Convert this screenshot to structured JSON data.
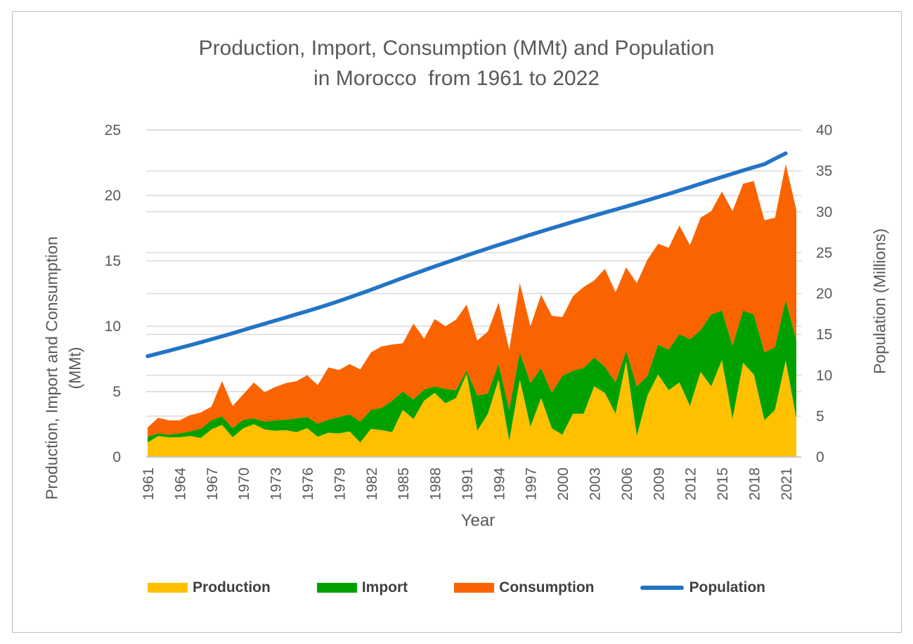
{
  "figure": {
    "title_line1": "Production, Import, Consumption (MMt) and Population",
    "title_line2": "in Morocco  from 1961 to 2022"
  },
  "axes": {
    "left_title_line1": "Production, Import and Consumption",
    "left_title_line2": "(MMt)",
    "right_title": "Population (Millions)",
    "x_title": "Year",
    "left_ticks": [
      0,
      5,
      10,
      15,
      20,
      25
    ],
    "right_ticks": [
      0,
      5,
      10,
      15,
      20,
      25,
      30,
      35,
      40
    ],
    "left_range": [
      0,
      25
    ],
    "right_range": [
      0,
      40
    ],
    "x_tick_years": [
      1961,
      1964,
      1967,
      1970,
      1973,
      1976,
      1979,
      1982,
      1985,
      1988,
      1991,
      1994,
      1997,
      2000,
      2003,
      2006,
      2009,
      2012,
      2015,
      2018,
      2021
    ]
  },
  "legend": {
    "items": [
      {
        "label": "Production",
        "color": "#FFC000",
        "type": "area"
      },
      {
        "label": "Import",
        "color": "#00A000",
        "type": "area"
      },
      {
        "label": "Consumption",
        "color": "#FA6400",
        "type": "area"
      },
      {
        "label": "Population",
        "color": "#2374C4",
        "type": "line"
      }
    ]
  },
  "colors": {
    "production": "#FFC000",
    "import": "#00A000",
    "consumption": "#FA6400",
    "population": "#2374C4",
    "gridline": "#D9D9D9",
    "axis_line": "#C8C8C8",
    "text": "#595959",
    "legend_text": "#404040"
  },
  "chart_data": {
    "type": "combo: stacked-area (primary axis, MMt) + line (secondary axis, millions)",
    "title": "Production, Import, Consumption (MMt) and Population in Morocco  from 1961 to 2022",
    "xlabel": "Year",
    "ylabel_left": "Production, Import and Consumption (MMt)",
    "ylabel_right": "Population (Millions)",
    "ylim_left": [
      0,
      25
    ],
    "ylim_right": [
      0,
      40
    ],
    "grid": true,
    "legend_position": "bottom",
    "categories": [
      1961,
      1962,
      1963,
      1964,
      1965,
      1966,
      1967,
      1968,
      1969,
      1970,
      1971,
      1972,
      1973,
      1974,
      1975,
      1976,
      1977,
      1978,
      1979,
      1980,
      1981,
      1982,
      1983,
      1984,
      1985,
      1986,
      1987,
      1988,
      1989,
      1990,
      1991,
      1992,
      1993,
      1994,
      1995,
      1996,
      1997,
      1998,
      1999,
      2000,
      2001,
      2002,
      2003,
      2004,
      2005,
      2006,
      2007,
      2008,
      2009,
      2010,
      2011,
      2012,
      2013,
      2014,
      2015,
      2016,
      2017,
      2018,
      2019,
      2020,
      2021,
      2022
    ],
    "series": [
      {
        "name": "Production",
        "axis": "left",
        "stack": true,
        "values": [
          1.1,
          1.6,
          1.5,
          1.5,
          1.6,
          1.45,
          2.1,
          2.45,
          1.5,
          2.2,
          2.5,
          2.1,
          2.0,
          2.05,
          1.9,
          2.2,
          1.55,
          1.85,
          1.8,
          1.95,
          1.1,
          2.15,
          2.05,
          1.9,
          3.6,
          2.9,
          4.3,
          4.9,
          4.1,
          4.5,
          6.35,
          2.0,
          3.3,
          5.9,
          1.2,
          5.9,
          2.3,
          4.5,
          2.2,
          1.7,
          3.3,
          3.3,
          5.4,
          4.9,
          3.3,
          7.3,
          1.6,
          4.7,
          6.3,
          5.1,
          5.7,
          3.9,
          6.5,
          5.4,
          7.4,
          2.9,
          7.2,
          6.3,
          2.8,
          3.6,
          7.35,
          2.95
        ]
      },
      {
        "name": "Import",
        "axis": "left",
        "stack": true,
        "values": [
          0.45,
          0.2,
          0.2,
          0.3,
          0.35,
          0.7,
          0.7,
          0.65,
          0.7,
          0.65,
          0.45,
          0.6,
          0.8,
          0.8,
          1.05,
          0.85,
          1.0,
          1.0,
          1.25,
          1.3,
          1.6,
          1.45,
          1.7,
          2.4,
          1.4,
          1.5,
          0.85,
          0.5,
          1.1,
          0.6,
          0.25,
          2.7,
          1.55,
          1.2,
          2.4,
          2.1,
          3.35,
          2.3,
          2.7,
          4.5,
          3.3,
          3.5,
          2.2,
          2.0,
          2.4,
          0.8,
          3.8,
          1.5,
          2.3,
          3.1,
          3.7,
          5.1,
          3.2,
          5.5,
          3.8,
          5.6,
          4.0,
          4.6,
          5.2,
          4.8,
          4.65,
          5.95
        ]
      },
      {
        "name": "Consumption",
        "axis": "left",
        "stack": true,
        "values": [
          0.7,
          1.2,
          1.1,
          1.0,
          1.25,
          1.25,
          1.05,
          2.7,
          1.7,
          1.95,
          2.75,
          2.25,
          2.55,
          2.8,
          2.85,
          3.2,
          2.95,
          4.0,
          3.6,
          3.85,
          4.0,
          4.4,
          4.7,
          4.3,
          3.7,
          5.8,
          3.9,
          5.15,
          4.8,
          5.4,
          5.05,
          4.2,
          4.75,
          4.7,
          4.6,
          5.3,
          4.35,
          5.6,
          5.9,
          4.5,
          5.7,
          6.2,
          5.9,
          7.5,
          6.9,
          6.4,
          7.9,
          8.9,
          7.7,
          7.8,
          8.3,
          7.2,
          8.6,
          7.9,
          9.1,
          10.3,
          9.7,
          10.2,
          10.1,
          9.9,
          10.4,
          10.0
        ]
      },
      {
        "name": "Population",
        "axis": "right",
        "stack": false,
        "values": [
          12.33,
          12.66,
          13.0,
          13.34,
          13.68,
          14.03,
          14.4,
          14.76,
          15.14,
          15.53,
          15.92,
          16.3,
          16.69,
          17.07,
          17.46,
          17.84,
          18.24,
          18.65,
          19.08,
          19.53,
          19.99,
          20.46,
          20.94,
          21.43,
          21.91,
          22.38,
          22.85,
          23.31,
          23.76,
          24.21,
          24.65,
          25.09,
          25.52,
          25.94,
          26.36,
          26.78,
          27.19,
          27.59,
          27.99,
          28.38,
          28.77,
          29.15,
          29.53,
          29.91,
          30.28,
          30.65,
          31.03,
          31.41,
          31.8,
          32.19,
          32.6,
          33.01,
          33.43,
          33.85,
          34.26,
          34.66,
          35.06,
          35.45,
          35.83,
          36.5,
          37.15,
          null
        ]
      }
    ]
  }
}
